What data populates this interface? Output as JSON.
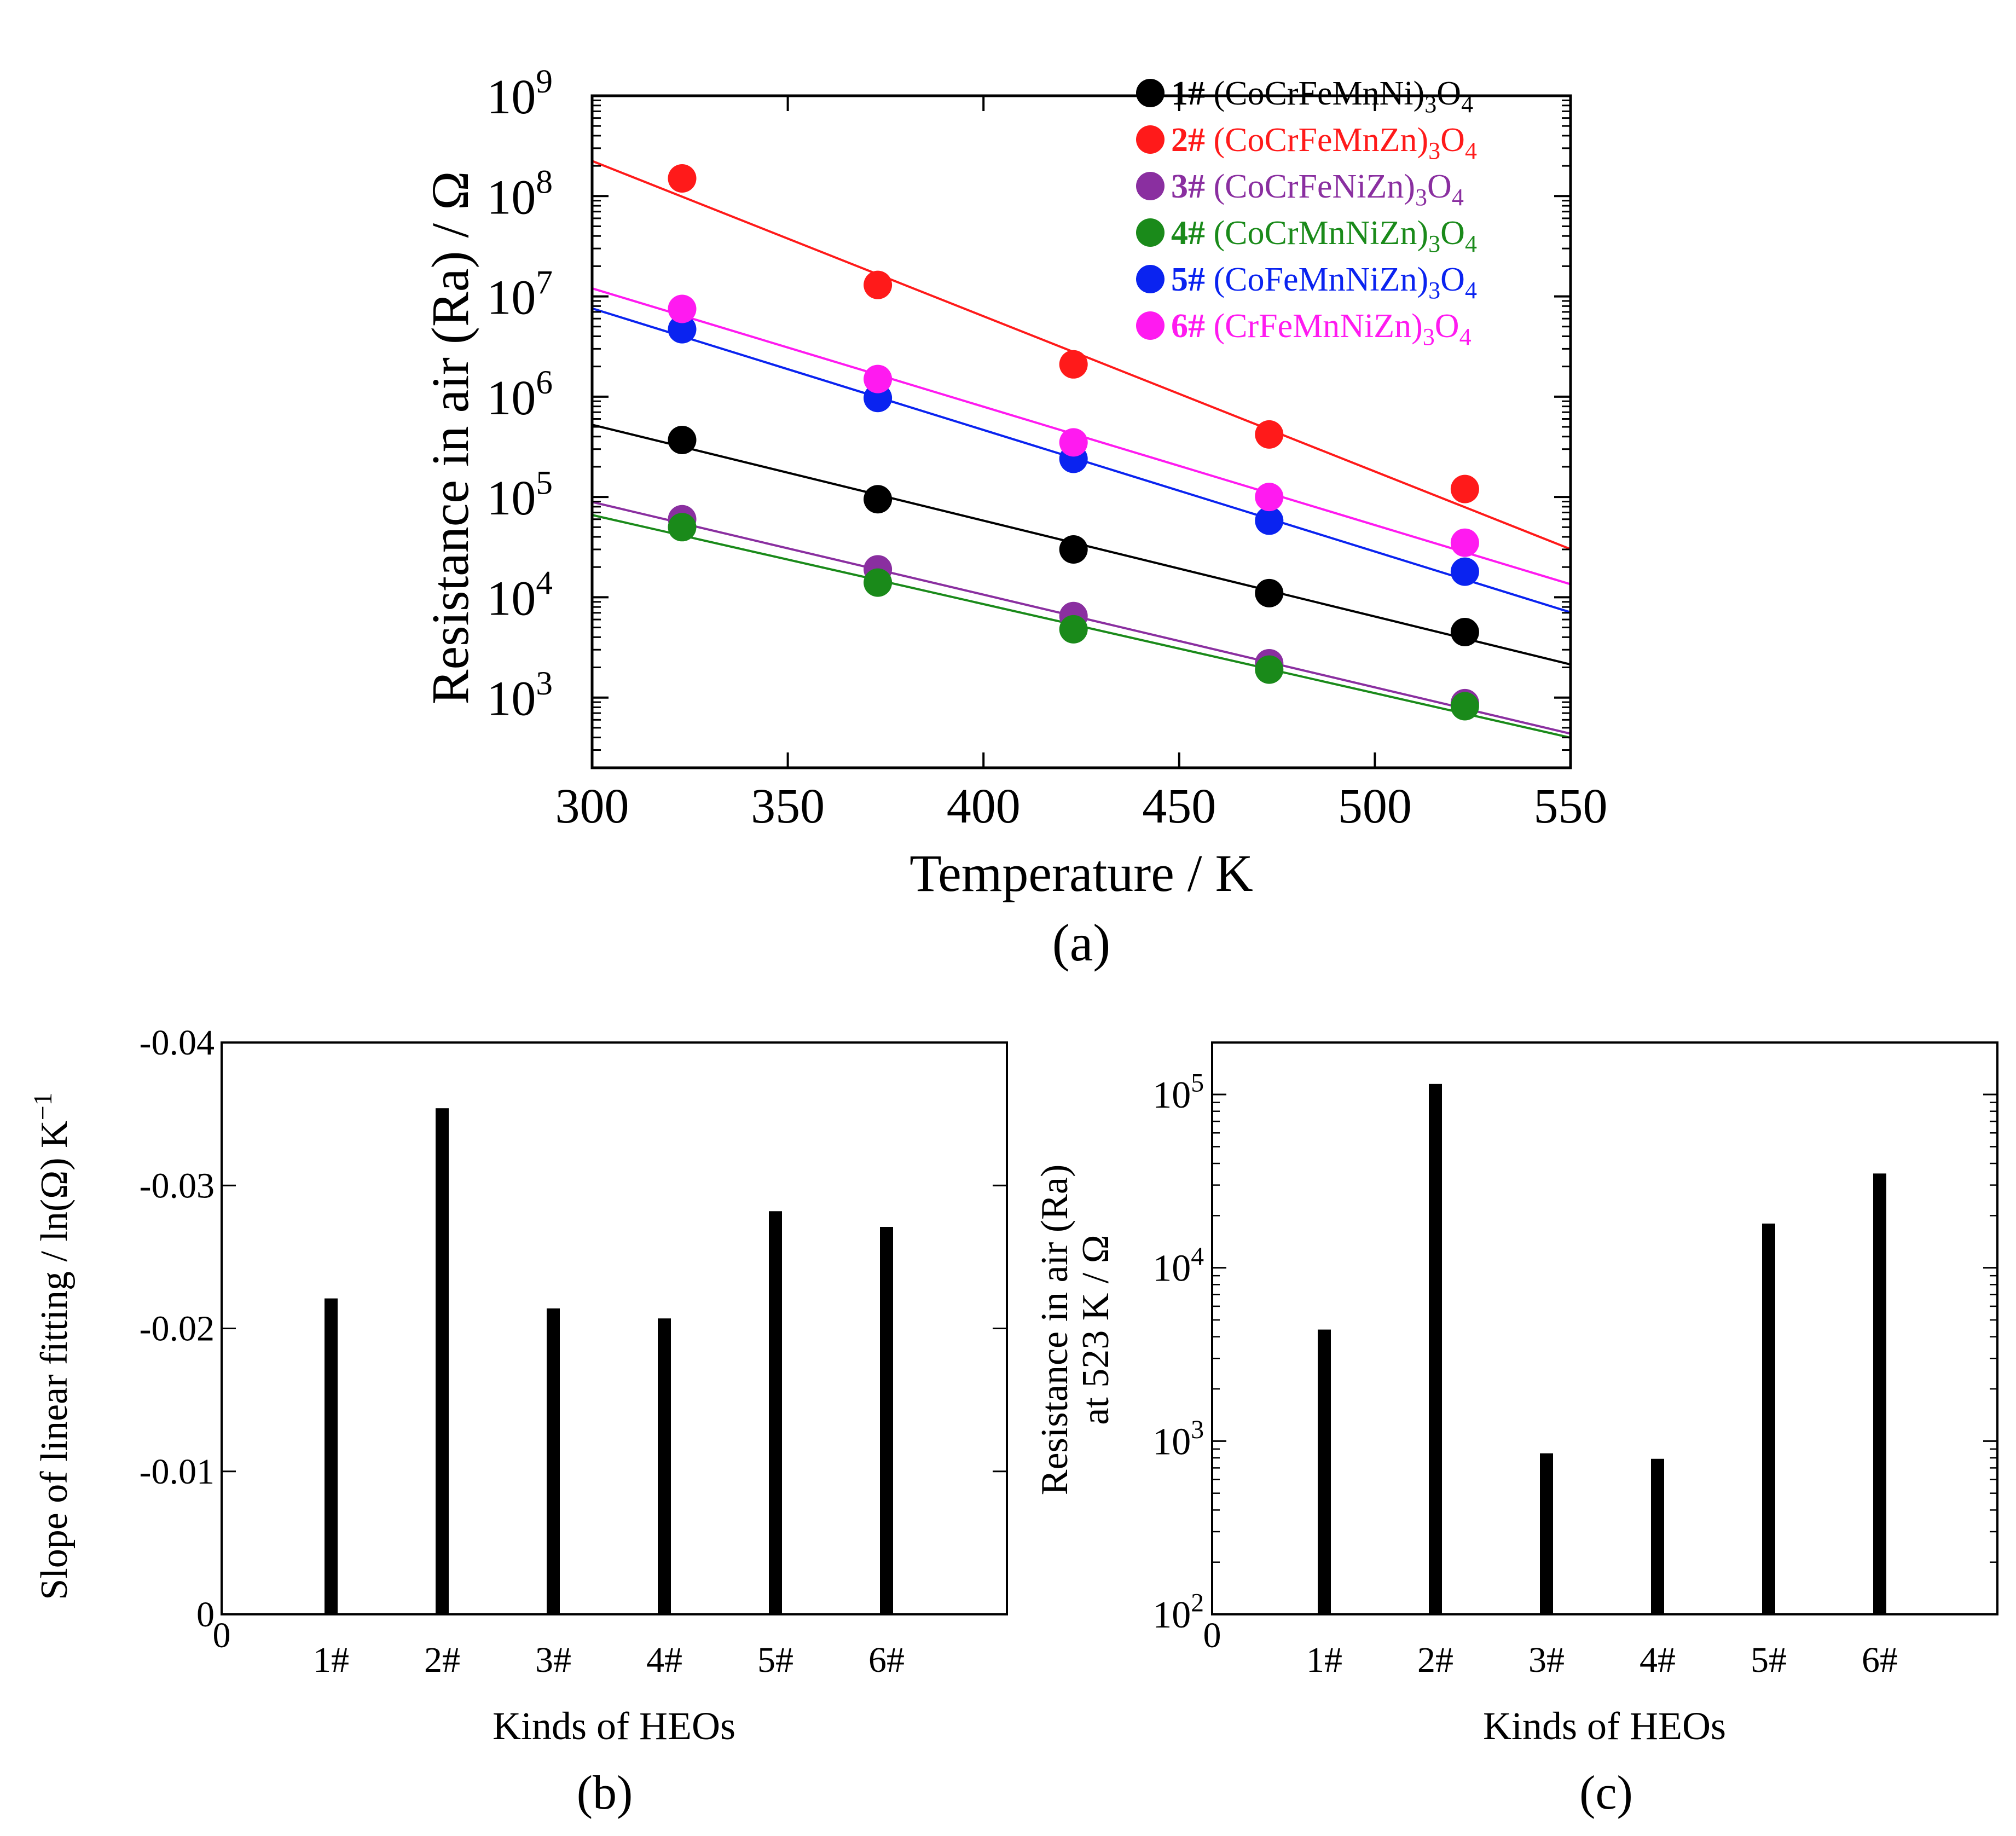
{
  "colors": {
    "s1": "#000000",
    "s2": "#ff1a1a",
    "s3": "#8a2fa0",
    "s4": "#1a8a1a",
    "s5": "#0a23f0",
    "s6": "#ff1af0",
    "axis": "#000000"
  },
  "chart_data": [
    {
      "id": "a",
      "panel_label": "(a)",
      "type": "scatter",
      "xlabel": "Temperature / K",
      "ylabel": "Resistance in air (Ra) / Ω",
      "xlim": [
        300,
        550
      ],
      "ylim_log10": [
        2.3,
        9.0
      ],
      "yscale": "log",
      "legend_position": "top-right",
      "x_ticks": [
        {
          "value": 300,
          "label": "300"
        },
        {
          "value": 350,
          "label": "350"
        },
        {
          "value": 400,
          "label": "400"
        },
        {
          "value": 450,
          "label": "450"
        },
        {
          "value": 500,
          "label": "500"
        },
        {
          "value": 550,
          "label": "550"
        }
      ],
      "y_ticks": [
        {
          "exp": 3,
          "base": "10",
          "sup": "3"
        },
        {
          "exp": 4,
          "base": "10",
          "sup": "4"
        },
        {
          "exp": 5,
          "base": "10",
          "sup": "5"
        },
        {
          "exp": 6,
          "base": "10",
          "sup": "6"
        },
        {
          "exp": 7,
          "base": "10",
          "sup": "7"
        },
        {
          "exp": 8,
          "base": "10",
          "sup": "8"
        },
        {
          "exp": 9,
          "base": "10",
          "sup": "9"
        }
      ],
      "x": [
        323,
        373,
        423,
        473,
        523
      ],
      "series": [
        {
          "id": "s1",
          "legend_num": "1#",
          "legend_formula": "(CoCrFeMnNi)",
          "legend_sub": "3",
          "legend_o": "O",
          "legend_o_sub": "4",
          "values": [
            370000,
            95000,
            30000,
            11000,
            4500
          ],
          "fit_log10": [
            5.72,
            3.33
          ]
        },
        {
          "id": "s2",
          "legend_num": "2#",
          "legend_formula": "(CoCrFeMnZn)",
          "legend_sub": "3",
          "legend_o": "O",
          "legend_o_sub": "4",
          "values": [
            150000000,
            13000000,
            2100000,
            420000,
            120000
          ],
          "fit_log10": [
            8.35,
            4.48
          ]
        },
        {
          "id": "s3",
          "legend_num": "3#",
          "legend_formula": "(CoCrFeNiZn)",
          "legend_sub": "3",
          "legend_o": "O",
          "legend_o_sub": "4",
          "values": [
            60000,
            19000,
            6500,
            2200,
            880
          ],
          "fit_log10": [
            4.95,
            2.64
          ]
        },
        {
          "id": "s4",
          "legend_num": "4#",
          "legend_formula": "(CoCrMnNiZn)",
          "legend_sub": "3",
          "legend_o": "O",
          "legend_o_sub": "4",
          "values": [
            50000,
            14000,
            4800,
            1900,
            820
          ],
          "fit_log10": [
            4.82,
            2.6
          ]
        },
        {
          "id": "s5",
          "legend_num": "5#",
          "legend_formula": "(CoFeMnNiZn)",
          "legend_sub": "3",
          "legend_o": "O",
          "legend_o_sub": "4",
          "values": [
            4700000,
            970000,
            240000,
            58000,
            18000
          ],
          "fit_log10": [
            6.88,
            3.85
          ]
        },
        {
          "id": "s6",
          "legend_num": "6#",
          "legend_formula": "(CrFeMnNiZn)",
          "legend_sub": "3",
          "legend_o": "O",
          "legend_o_sub": "4",
          "values": [
            7500000,
            1500000,
            350000,
            100000,
            35000
          ],
          "fit_log10": [
            7.08,
            4.13
          ]
        }
      ]
    },
    {
      "id": "b",
      "panel_label": "(b)",
      "type": "bar",
      "xlabel": "Kinds of HEOs",
      "ylabel": "Slope of linear fitting / ln(Ω) K",
      "ylabel_sup": "−1",
      "origin_label": "0",
      "ylim": [
        0,
        -0.04
      ],
      "y_ticks": [
        {
          "value": 0,
          "label": "0"
        },
        {
          "value": -0.01,
          "label": "-0.01"
        },
        {
          "value": -0.02,
          "label": "-0.02"
        },
        {
          "value": -0.03,
          "label": "-0.03"
        },
        {
          "value": -0.04,
          "label": "-0.04"
        }
      ],
      "categories": [
        "1#",
        "2#",
        "3#",
        "4#",
        "5#",
        "6#"
      ],
      "values": [
        -0.0221,
        -0.0354,
        -0.0214,
        -0.0207,
        -0.0282,
        -0.0271
      ]
    },
    {
      "id": "c",
      "panel_label": "(c)",
      "type": "bar",
      "xlabel": "Kinds of HEOs",
      "ylabel_line1": "Resistance in air (Ra)",
      "ylabel_line2": "at 523 K / Ω",
      "origin_label": "0",
      "yscale": "log",
      "ylim_log10": [
        2.0,
        5.3
      ],
      "y_ticks": [
        {
          "exp": 2,
          "base": "10",
          "sup": "2"
        },
        {
          "exp": 3,
          "base": "10",
          "sup": "3"
        },
        {
          "exp": 4,
          "base": "10",
          "sup": "4"
        },
        {
          "exp": 5,
          "base": "10",
          "sup": "5"
        }
      ],
      "categories": [
        "1#",
        "2#",
        "3#",
        "4#",
        "5#",
        "6#"
      ],
      "values": [
        4400,
        115000,
        850,
        790,
        18000,
        35000
      ]
    }
  ]
}
